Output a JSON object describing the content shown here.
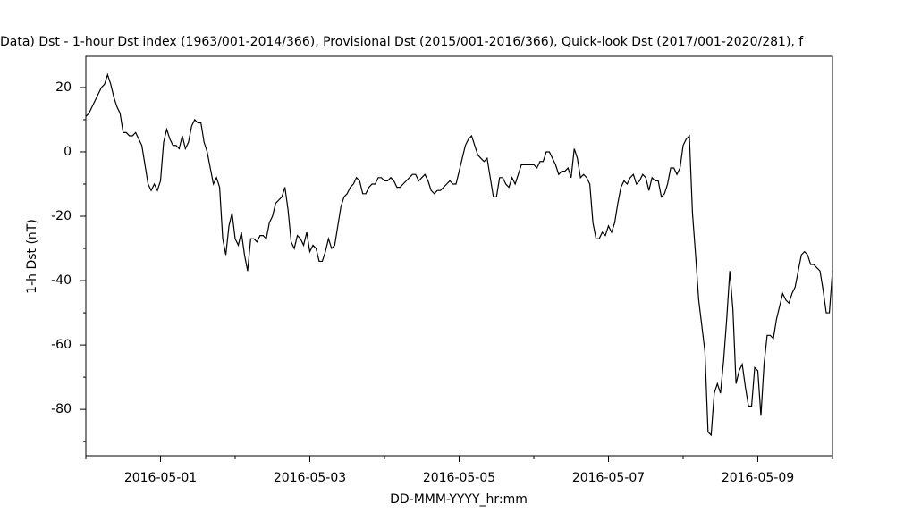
{
  "chart_data": {
    "type": "line",
    "title": "Data)  Dst - 1-hour Dst index (1963/001-2014/366), Provisional Dst (2015/001-2016/366), Quick-look Dst (2017/001-2020/281), f",
    "x_label": "DD-MMM-YYYY_hr:mm",
    "y_label": "1-h Dst (nT)",
    "xlim": [
      0,
      240
    ],
    "ylim": [
      -94.4,
      29.7
    ],
    "xticks": [
      {
        "value": 24,
        "label": "2016-05-01"
      },
      {
        "value": 72,
        "label": "2016-05-03"
      },
      {
        "value": 120,
        "label": "2016-05-05"
      },
      {
        "value": 168,
        "label": "2016-05-07"
      },
      {
        "value": 216,
        "label": "2016-05-09"
      }
    ],
    "xminorticks": [
      0,
      48,
      96,
      144,
      192,
      240
    ],
    "yticks": [
      20,
      0,
      -20,
      -40,
      -60,
      -80
    ],
    "yminorticks": [
      10,
      -10,
      -30,
      -50,
      -70,
      -90
    ],
    "series": [
      {
        "color": "#000000",
        "x": [
          0,
          1,
          2,
          3,
          4,
          5,
          6,
          7,
          8,
          9,
          10,
          11,
          12,
          13,
          14,
          15,
          16,
          17,
          18,
          19,
          20,
          21,
          22,
          23,
          24,
          25,
          26,
          27,
          28,
          29,
          30,
          31,
          32,
          33,
          34,
          35,
          36,
          37,
          38,
          39,
          40,
          41,
          42,
          43,
          44,
          45,
          46,
          47,
          48,
          49,
          50,
          51,
          52,
          53,
          54,
          55,
          56,
          57,
          58,
          59,
          60,
          61,
          62,
          63,
          64,
          65,
          66,
          67,
          68,
          69,
          70,
          71,
          72,
          73,
          74,
          75,
          76,
          77,
          78,
          79,
          80,
          81,
          82,
          83,
          84,
          85,
          86,
          87,
          88,
          89,
          90,
          91,
          92,
          93,
          94,
          95,
          96,
          97,
          98,
          99,
          100,
          101,
          102,
          103,
          104,
          105,
          106,
          107,
          108,
          109,
          110,
          111,
          112,
          113,
          114,
          115,
          116,
          117,
          118,
          119,
          120,
          121,
          122,
          123,
          124,
          125,
          126,
          127,
          128,
          129,
          130,
          131,
          132,
          133,
          134,
          135,
          136,
          137,
          138,
          139,
          140,
          141,
          142,
          143,
          144,
          145,
          146,
          147,
          148,
          149,
          150,
          151,
          152,
          153,
          154,
          155,
          156,
          157,
          158,
          159,
          160,
          161,
          162,
          163,
          164,
          165,
          166,
          167,
          168,
          169,
          170,
          171,
          172,
          173,
          174,
          175,
          176,
          177,
          178,
          179,
          180,
          181,
          182,
          183,
          184,
          185,
          186,
          187,
          188,
          189,
          190,
          191,
          192,
          193,
          194,
          195,
          196,
          197,
          198,
          199,
          200,
          201,
          202,
          203,
          204,
          205,
          206,
          207,
          208,
          209,
          210,
          211,
          212,
          213,
          214,
          215,
          216,
          217,
          218,
          219,
          220,
          221,
          222,
          223,
          224,
          225,
          226,
          227,
          228,
          229,
          230,
          231,
          232,
          233,
          234,
          235,
          236,
          237,
          238,
          239,
          240
        ],
        "values": [
          11,
          12,
          14,
          16,
          18,
          20,
          21,
          24,
          21,
          17,
          14,
          12,
          6,
          6,
          5,
          5,
          6,
          4,
          2,
          -4,
          -10,
          -12,
          -10,
          -12,
          -9,
          3,
          7,
          4,
          2,
          2,
          1,
          5,
          1,
          3,
          8,
          10,
          9,
          9,
          3,
          0,
          -5,
          -10,
          -8,
          -11,
          -27,
          -32,
          -23,
          -19,
          -27,
          -29,
          -25,
          -32,
          -37,
          -27,
          -27,
          -28,
          -26,
          -26,
          -27,
          -22,
          -20,
          -16,
          -15,
          -14,
          -11,
          -18,
          -28,
          -30,
          -26,
          -27,
          -29,
          -25,
          -31,
          -29,
          -30,
          -34,
          -34,
          -31,
          -27,
          -30,
          -29,
          -23,
          -17,
          -14,
          -13,
          -11,
          -10,
          -8,
          -9,
          -13,
          -13,
          -11,
          -10,
          -10,
          -8,
          -8,
          -9,
          -9,
          -8,
          -9,
          -11,
          -11,
          -10,
          -9,
          -8,
          -7,
          -7,
          -9,
          -8,
          -7,
          -9,
          -12,
          -13,
          -12,
          -12,
          -11,
          -10,
          -9,
          -10,
          -10,
          -6,
          -2,
          2,
          4,
          5,
          2,
          -1,
          -2,
          -3,
          -2,
          -8,
          -14,
          -14,
          -8,
          -8,
          -10,
          -11,
          -8,
          -10,
          -7,
          -4,
          -4,
          -4,
          -4,
          -4,
          -5,
          -3,
          -3,
          0,
          0,
          -2,
          -4,
          -7,
          -6,
          -6,
          -5,
          -8,
          1,
          -2,
          -8,
          -7,
          -8,
          -10,
          -22,
          -27,
          -27,
          -25,
          -26,
          -23,
          -25,
          -22,
          -16,
          -11,
          -9,
          -10,
          -8,
          -7,
          -10,
          -9,
          -7,
          -8,
          -12,
          -8,
          -9,
          -9,
          -14,
          -13,
          -10,
          -5,
          -5,
          -7,
          -5,
          2,
          4,
          5,
          -19,
          -32,
          -46,
          -54,
          -62,
          -87,
          -88,
          -75,
          -72,
          -75,
          -65,
          -52,
          -37,
          -49,
          -72,
          -68,
          -66,
          -73,
          -79,
          -79,
          -67,
          -68,
          -82,
          -66,
          -57,
          -57,
          -58,
          -52,
          -48,
          -44,
          -46,
          -47,
          -44,
          -42,
          -37,
          -32,
          -31,
          -32,
          -35,
          -35,
          -36,
          -37,
          -43,
          -50,
          -50,
          -37
        ]
      }
    ]
  }
}
